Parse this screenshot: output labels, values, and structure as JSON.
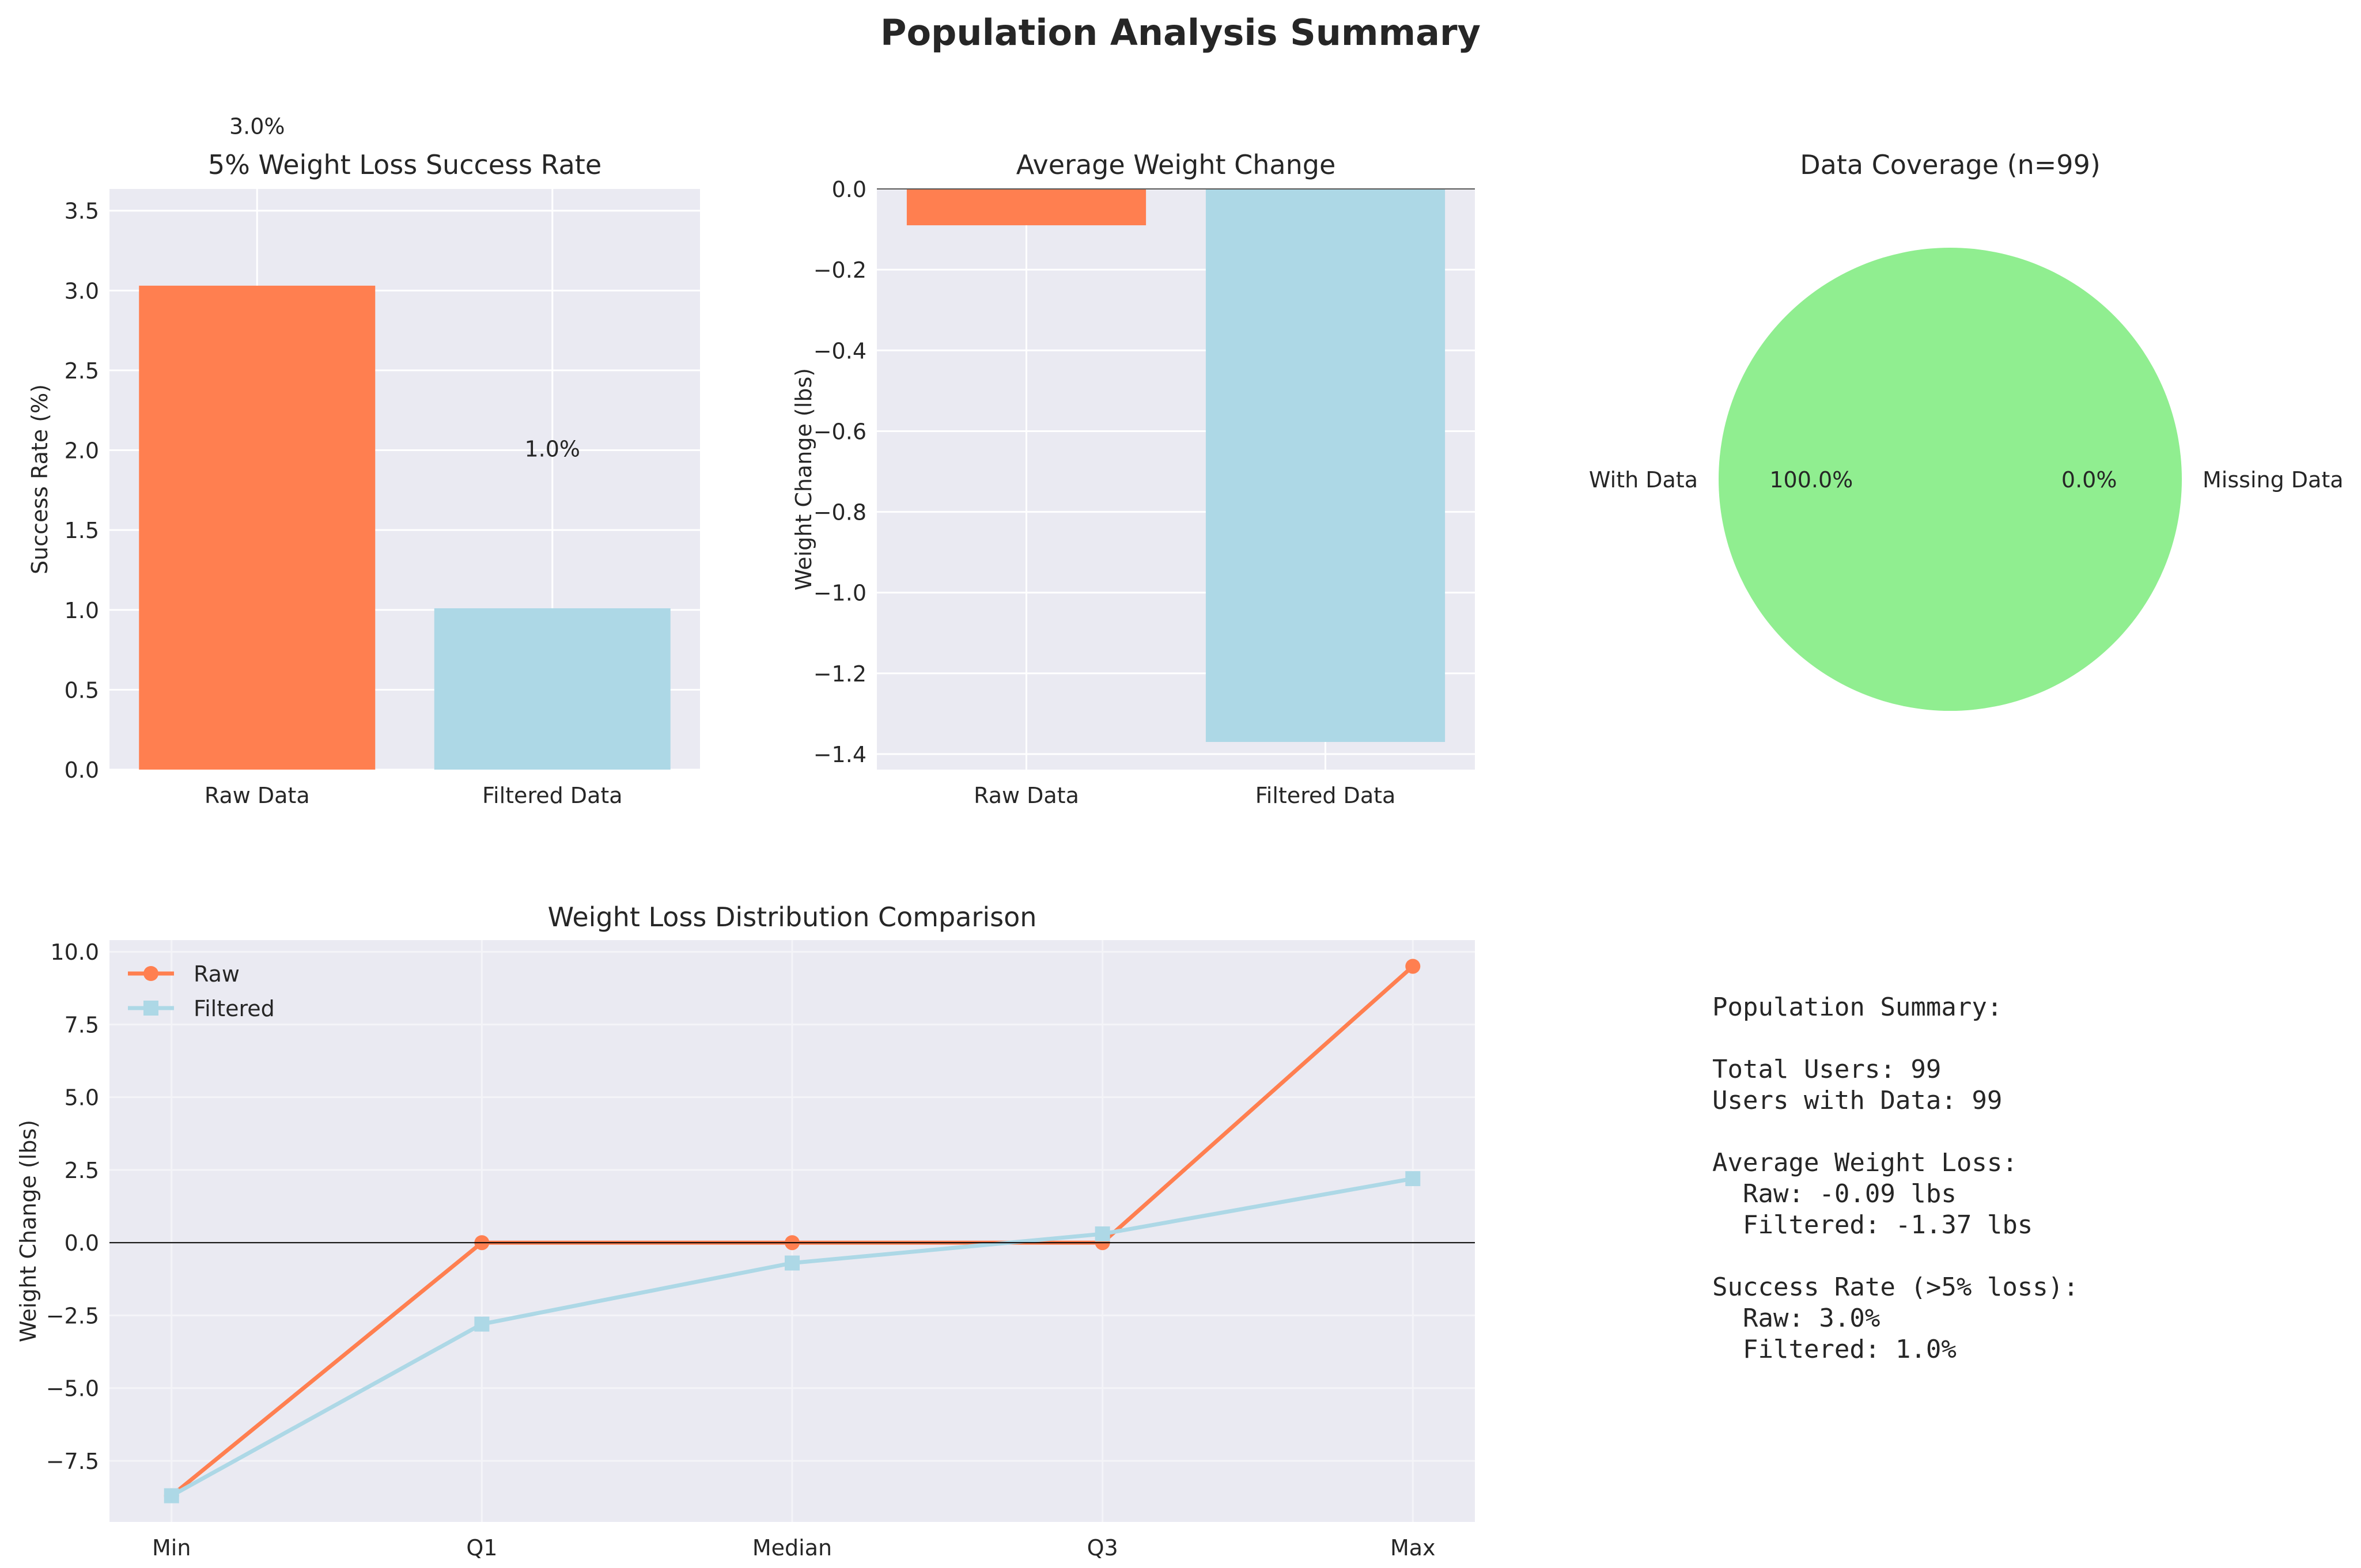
{
  "figure_title": "Population Analysis Summary",
  "colors": {
    "raw": "#ff7f50",
    "filtered": "#add8e6",
    "with_data": "#90ee90",
    "axes_bg": "#eaeaf2",
    "grid": "#ffffff"
  },
  "chart_data": [
    {
      "type": "bar",
      "title": "5% Weight Loss Success Rate",
      "xlabel": "",
      "ylabel": "Success Rate (%)",
      "categories": [
        "Raw Data",
        "Filtered Data"
      ],
      "values": [
        3.0303,
        1.0101
      ],
      "data_labels": [
        "3.0%",
        "1.0%"
      ],
      "ylim": [
        0,
        3.636
      ],
      "yticks": [
        0.0,
        0.5,
        1.0,
        1.5,
        2.0,
        2.5,
        3.0,
        3.5
      ],
      "ytick_labels": [
        "0.0",
        "0.5",
        "1.0",
        "1.5",
        "2.0",
        "2.5",
        "3.0",
        "3.5"
      ],
      "colors": [
        "#ff7f50",
        "#add8e6"
      ],
      "grid": true
    },
    {
      "type": "bar",
      "title": "Average Weight Change",
      "xlabel": "",
      "ylabel": "Weight Change (lbs)",
      "categories": [
        "Raw Data",
        "Filtered Data"
      ],
      "values": [
        -0.09,
        -1.37
      ],
      "ylim": [
        -1.4385,
        0.0
      ],
      "yticks": [
        0.0,
        -0.2,
        -0.4,
        -0.6,
        -0.8,
        -1.0,
        -1.2,
        -1.4
      ],
      "ytick_labels": [
        "0.0",
        "−0.2",
        "−0.4",
        "−0.6",
        "−0.8",
        "−1.0",
        "−1.2",
        "−1.4"
      ],
      "colors": [
        "#ff7f50",
        "#add8e6"
      ],
      "grid": true
    },
    {
      "type": "pie",
      "title": "Data Coverage (n=99)",
      "labels": [
        "With Data",
        "Missing Data"
      ],
      "values": [
        99,
        0
      ],
      "pct_labels": [
        "100.0%",
        "0.0%"
      ],
      "colors": [
        "#90ee90",
        "#ff7f50"
      ]
    },
    {
      "type": "line",
      "title": "Weight Loss Distribution Comparison",
      "xlabel": "",
      "ylabel": "Weight Change (lbs)",
      "categories": [
        "Min",
        "Q1",
        "Median",
        "Q3",
        "Max"
      ],
      "series": [
        {
          "name": "Raw",
          "values": [
            -8.7,
            0.0,
            0.0,
            0.0,
            9.5
          ],
          "color": "#ff7f50",
          "marker": "circle"
        },
        {
          "name": "Filtered",
          "values": [
            -8.7,
            -2.8,
            -0.7,
            0.3,
            2.2
          ],
          "color": "#add8e6",
          "marker": "square"
        }
      ],
      "ylim": [
        -9.6,
        10.4
      ],
      "yticks": [
        -7.5,
        -5.0,
        -2.5,
        0.0,
        2.5,
        5.0,
        7.5,
        10.0
      ],
      "ytick_labels": [
        "−7.5",
        "−5.0",
        "−2.5",
        "0.0",
        "2.5",
        "5.0",
        "7.5",
        "10.0"
      ],
      "legend": "upper-left",
      "grid": true
    }
  ],
  "summary": {
    "text": "Population Summary:\n\nTotal Users: 99\nUsers with Data: 99\n\nAverage Weight Loss:\n  Raw: -0.09 lbs\n  Filtered: -1.37 lbs\n\nSuccess Rate (>5% loss):\n  Raw: 3.0%\n  Filtered: 1.0%"
  }
}
